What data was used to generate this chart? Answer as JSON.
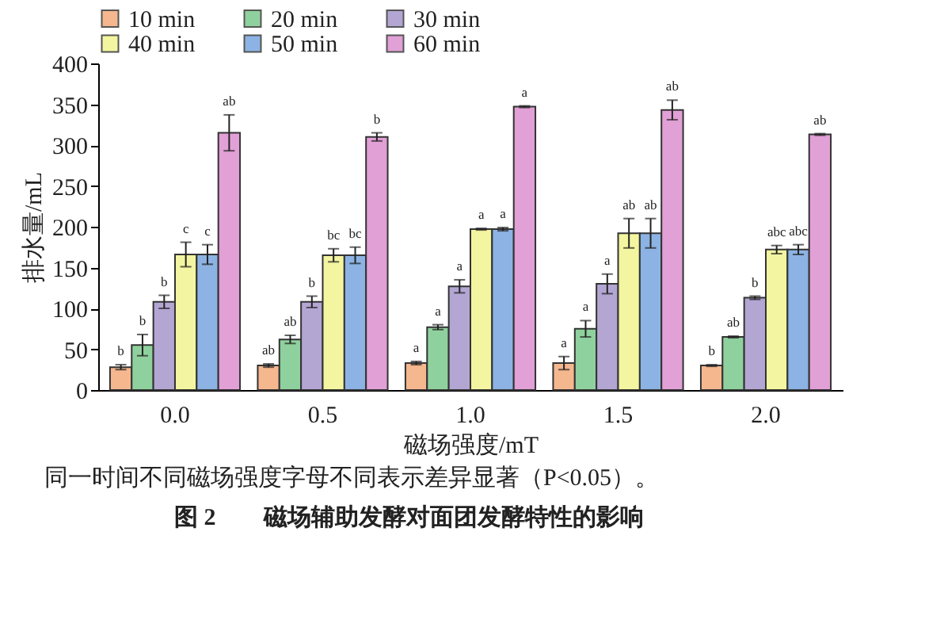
{
  "chart_data": {
    "type": "bar",
    "xlabel": "磁场强度/mT",
    "ylabel": "排水量/mL",
    "categories": [
      "0.0",
      "0.5",
      "1.0",
      "1.5",
      "2.0"
    ],
    "ylim": [
      0,
      400
    ],
    "yticks": [
      0,
      50,
      100,
      150,
      200,
      250,
      300,
      350,
      400
    ],
    "grid": false,
    "legend": "top",
    "series": [
      {
        "name": "10 min",
        "color": "#f5b78e",
        "values": [
          28,
          30,
          33,
          33,
          30
        ],
        "errors": [
          3,
          2,
          2,
          8,
          1
        ],
        "value_labels": [
          "b",
          "ab",
          "a",
          "a",
          "b"
        ]
      },
      {
        "name": "20 min",
        "color": "#8fd19e",
        "values": [
          55,
          62,
          77,
          75,
          65
        ],
        "errors": [
          13,
          5,
          3,
          10,
          1
        ],
        "value_labels": [
          "b",
          "ab",
          "a",
          "a",
          "ab"
        ]
      },
      {
        "name": "30 min",
        "color": "#b3a6d3",
        "values": [
          108,
          108,
          127,
          130,
          113
        ],
        "errors": [
          8,
          7,
          8,
          12,
          2
        ],
        "value_labels": [
          "b",
          "b",
          "a",
          "a",
          "b"
        ]
      },
      {
        "name": "40 min",
        "color": "#f3f5a0",
        "values": [
          166,
          165,
          197,
          192,
          172
        ],
        "errors": [
          15,
          8,
          1,
          18,
          5
        ],
        "value_labels": [
          "c",
          "bc",
          "a",
          "ab",
          "abc"
        ]
      },
      {
        "name": "50 min",
        "color": "#8cb3e3",
        "values": [
          166,
          165,
          197,
          192,
          172
        ],
        "errors": [
          12,
          10,
          2,
          18,
          6
        ],
        "value_labels": [
          "c",
          "bc",
          "a",
          "ab",
          "abc"
        ]
      },
      {
        "name": "60 min",
        "color": "#e1a0d6",
        "values": [
          315,
          310,
          347,
          343,
          313
        ],
        "errors": [
          22,
          5,
          1,
          12,
          1
        ],
        "value_labels": [
          "ab",
          "b",
          "a",
          "ab",
          "ab"
        ]
      }
    ],
    "annotations": [
      "同一时间不同磁场强度字母不同表示差异显著（P<0.05）。",
      "图 2　　磁场辅助发酵对面团发酵特性的影响"
    ]
  }
}
